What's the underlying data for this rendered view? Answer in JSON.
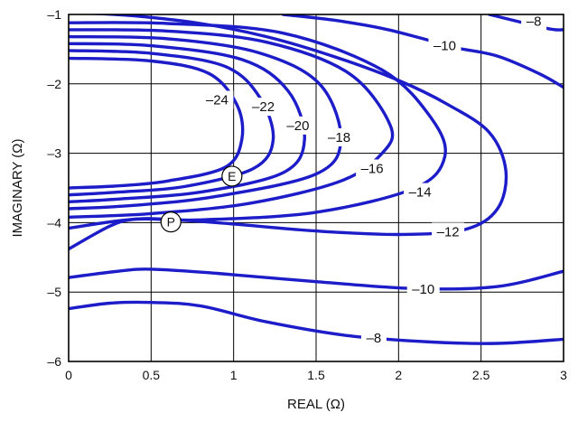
{
  "chart_data": {
    "type": "line",
    "title": "",
    "xlabel": "REAL (Ω)",
    "ylabel": "IMAGINARY (Ω)",
    "xlim": [
      0,
      3
    ],
    "ylim": [
      -6,
      -1
    ],
    "grid": true,
    "line_color": "#1c1cc8",
    "x_ticks": [
      {
        "value": 0,
        "label": "0"
      },
      {
        "value": 0.5,
        "label": "0.5"
      },
      {
        "value": 1,
        "label": "1"
      },
      {
        "value": 1.5,
        "label": "1.5"
      },
      {
        "value": 2,
        "label": "2"
      },
      {
        "value": 2.5,
        "label": "2.5"
      },
      {
        "value": 3,
        "label": "3"
      }
    ],
    "y_ticks": [
      {
        "value": -1,
        "label": "–1"
      },
      {
        "value": -2,
        "label": "–2"
      },
      {
        "value": -3,
        "label": "–3"
      },
      {
        "value": -4,
        "label": "–4"
      },
      {
        "value": -5,
        "label": "–5"
      },
      {
        "value": -6,
        "label": "–6"
      }
    ],
    "series": [
      {
        "label": "–24",
        "label_at": [
          0.9,
          -2.23
        ],
        "points": [
          [
            0,
            -1.63
          ],
          [
            0.5,
            -1.67
          ],
          [
            0.85,
            -1.85
          ],
          [
            1.02,
            -2.3
          ],
          [
            1.05,
            -2.8
          ],
          [
            0.95,
            -3.2
          ],
          [
            0.6,
            -3.4
          ],
          [
            0.3,
            -3.47
          ],
          [
            0,
            -3.5
          ]
        ]
      },
      {
        "label": "–22",
        "label_at": [
          1.18,
          -2.33
        ],
        "points": [
          [
            0,
            -1.52
          ],
          [
            0.5,
            -1.56
          ],
          [
            0.95,
            -1.75
          ],
          [
            1.16,
            -2.2
          ],
          [
            1.24,
            -2.8
          ],
          [
            1.12,
            -3.22
          ],
          [
            0.7,
            -3.48
          ],
          [
            0.3,
            -3.56
          ],
          [
            0,
            -3.6
          ]
        ]
      },
      {
        "label": "–20",
        "label_at": [
          1.39,
          -2.6
        ],
        "points": [
          [
            0,
            -1.42
          ],
          [
            0.5,
            -1.45
          ],
          [
            1.05,
            -1.65
          ],
          [
            1.33,
            -2.1
          ],
          [
            1.43,
            -2.8
          ],
          [
            1.3,
            -3.28
          ],
          [
            0.8,
            -3.56
          ],
          [
            0.3,
            -3.66
          ],
          [
            0,
            -3.7
          ]
        ]
      },
      {
        "label": "–18",
        "label_at": [
          1.64,
          -2.77
        ],
        "points": [
          [
            0,
            -1.32
          ],
          [
            0.6,
            -1.35
          ],
          [
            1.15,
            -1.55
          ],
          [
            1.52,
            -2.0
          ],
          [
            1.65,
            -2.8
          ],
          [
            1.5,
            -3.3
          ],
          [
            0.9,
            -3.62
          ],
          [
            0.4,
            -3.75
          ],
          [
            0,
            -3.8
          ]
        ]
      },
      {
        "label": "–16",
        "label_at": [
          1.84,
          -3.22
        ],
        "points": [
          [
            0,
            -1.22
          ],
          [
            0.6,
            -1.24
          ],
          [
            1.2,
            -1.4
          ],
          [
            1.7,
            -1.85
          ],
          [
            1.95,
            -2.6
          ],
          [
            1.9,
            -3.0
          ],
          [
            1.65,
            -3.4
          ],
          [
            1.1,
            -3.72
          ],
          [
            0.5,
            -3.87
          ],
          [
            0,
            -3.92
          ]
        ]
      },
      {
        "label": "–14",
        "label_at": [
          2.13,
          -3.56
        ],
        "points": [
          [
            0,
            -1.12
          ],
          [
            0.6,
            -1.13
          ],
          [
            1.3,
            -1.27
          ],
          [
            1.9,
            -1.8
          ],
          [
            2.2,
            -2.5
          ],
          [
            2.28,
            -3.05
          ],
          [
            2.1,
            -3.5
          ],
          [
            1.5,
            -3.85
          ],
          [
            0.8,
            -3.96
          ],
          [
            0.4,
            -3.95
          ],
          [
            0,
            -4.08
          ]
        ]
      },
      {
        "label": "–12",
        "label_at": [
          2.3,
          -4.13
        ],
        "points": [
          [
            0,
            -4.38
          ],
          [
            0.25,
            -4.05
          ],
          [
            0.4,
            -3.95
          ],
          [
            0.6,
            -3.95
          ],
          [
            1.0,
            -4.02
          ],
          [
            1.5,
            -4.12
          ],
          [
            2.0,
            -4.17
          ],
          [
            2.4,
            -4.1
          ],
          [
            2.6,
            -3.8
          ],
          [
            2.65,
            -3.25
          ],
          [
            2.55,
            -2.7
          ],
          [
            2.3,
            -2.3
          ],
          [
            2.0,
            -1.95
          ],
          [
            1.6,
            -1.6
          ],
          [
            1.2,
            -1.32
          ],
          [
            0.8,
            -1.13
          ],
          [
            0.4,
            -1.02
          ],
          [
            0.1,
            -0.98
          ]
        ]
      },
      {
        "label": "–10",
        "label_at": [
          2.28,
          -1.45
        ],
        "points": [
          [
            1.3,
            -1.0
          ],
          [
            1.6,
            -1.08
          ],
          [
            1.9,
            -1.2
          ],
          [
            2.15,
            -1.35
          ],
          [
            2.35,
            -1.48
          ],
          [
            2.6,
            -1.6
          ],
          [
            2.85,
            -1.85
          ],
          [
            3.0,
            -2.05
          ]
        ]
      },
      {
        "label": "–8",
        "label_at": [
          2.82,
          -1.1
        ],
        "points": [
          [
            2.55,
            -1.0
          ],
          [
            2.9,
            -1.2
          ],
          [
            3.0,
            -1.22
          ]
        ]
      },
      {
        "label": "–10",
        "label_at": [
          2.15,
          -4.96
        ],
        "points": [
          [
            0,
            -4.79
          ],
          [
            0.3,
            -4.7
          ],
          [
            0.5,
            -4.67
          ],
          [
            0.9,
            -4.73
          ],
          [
            1.5,
            -4.85
          ],
          [
            2.1,
            -4.95
          ],
          [
            2.6,
            -4.92
          ],
          [
            3.0,
            -4.7
          ]
        ]
      },
      {
        "label": "–8",
        "label_at": [
          1.85,
          -5.66
        ],
        "points": [
          [
            0,
            -5.24
          ],
          [
            0.25,
            -5.16
          ],
          [
            0.5,
            -5.15
          ],
          [
            0.8,
            -5.2
          ],
          [
            1.2,
            -5.43
          ],
          [
            1.7,
            -5.63
          ],
          [
            2.2,
            -5.72
          ],
          [
            2.6,
            -5.74
          ],
          [
            3.0,
            -5.68
          ]
        ]
      }
    ],
    "markers": [
      {
        "label": "E",
        "at": [
          0.99,
          -3.33
        ]
      },
      {
        "label": "P",
        "at": [
          0.62,
          -3.99
        ]
      }
    ]
  }
}
